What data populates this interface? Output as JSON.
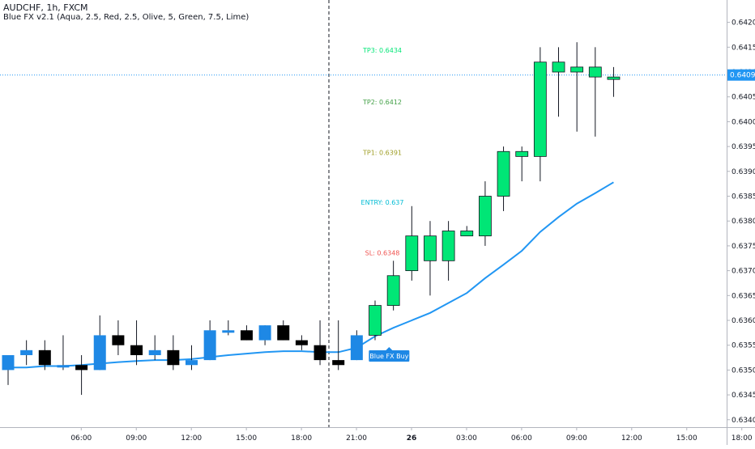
{
  "header": {
    "symbol_line": "AUDCHF, 1h, FXCM",
    "indicator_line": "Blue FX v2.1 (Aqua, 2.5, Red, 2.5, Olive, 5, Green, 7.5, Lime)"
  },
  "colors": {
    "bull_pre": "#1e88e5",
    "bear_pre": "#000000",
    "bull_post": "#00e676",
    "ma_line": "#2196f3",
    "price_line": "#2196f3",
    "tp3": "#00e676",
    "tp2": "#43a047",
    "tp1": "#9e9d24",
    "entry": "#00bcd4",
    "sl": "#ef5350",
    "grid_text": "#131722",
    "axis_line": "#b2b5be"
  },
  "chart_data": {
    "type": "candlestick",
    "y_axis": {
      "ticks": [
        "0.64200",
        "0.64150",
        "0.64100",
        "0.64050",
        "0.64000",
        "0.63950",
        "0.63900",
        "0.63850",
        "0.63800",
        "0.63750",
        "0.63700",
        "0.63650",
        "0.63600",
        "0.63550",
        "0.63500",
        "0.63450",
        "0.63400"
      ],
      "ylim": [
        0.63385,
        0.64245
      ],
      "side": "right"
    },
    "x_axis": {
      "ticks": [
        "06:00",
        "09:00",
        "12:00",
        "15:00",
        "18:00",
        "21:00",
        "26",
        "03:00",
        "06:00",
        "09:00",
        "12:00",
        "15:00",
        "18:00"
      ],
      "tick_index": [
        2,
        5,
        8,
        11,
        14,
        17,
        20,
        23,
        26,
        29,
        32,
        35,
        38
      ]
    },
    "session_break_index": 18.5,
    "candles": [
      {
        "o": 0.635,
        "h": 0.6353,
        "l": 0.6347,
        "c": 0.6353
      },
      {
        "o": 0.6353,
        "h": 0.6356,
        "l": 0.6351,
        "c": 0.6354
      },
      {
        "o": 0.6354,
        "h": 0.6356,
        "l": 0.635,
        "c": 0.6351
      },
      {
        "o": 0.6351,
        "h": 0.6357,
        "l": 0.635,
        "c": 0.6351
      },
      {
        "o": 0.6351,
        "h": 0.6353,
        "l": 0.6345,
        "c": 0.635
      },
      {
        "o": 0.635,
        "h": 0.6361,
        "l": 0.635,
        "c": 0.6357
      },
      {
        "o": 0.6357,
        "h": 0.636,
        "l": 0.6353,
        "c": 0.6355
      },
      {
        "o": 0.6355,
        "h": 0.636,
        "l": 0.6351,
        "c": 0.6353
      },
      {
        "o": 0.6353,
        "h": 0.6357,
        "l": 0.6352,
        "c": 0.6354
      },
      {
        "o": 0.6354,
        "h": 0.6357,
        "l": 0.635,
        "c": 0.6351
      },
      {
        "o": 0.6351,
        "h": 0.6355,
        "l": 0.635,
        "c": 0.6352
      },
      {
        "o": 0.6352,
        "h": 0.636,
        "l": 0.6352,
        "c": 0.6358
      },
      {
        "o": 0.6358,
        "h": 0.636,
        "l": 0.6357,
        "c": 0.6358
      },
      {
        "o": 0.6358,
        "h": 0.6359,
        "l": 0.6356,
        "c": 0.6356
      },
      {
        "o": 0.6356,
        "h": 0.6359,
        "l": 0.6355,
        "c": 0.6359
      },
      {
        "o": 0.6359,
        "h": 0.636,
        "l": 0.6356,
        "c": 0.6356
      },
      {
        "o": 0.6356,
        "h": 0.6357,
        "l": 0.6354,
        "c": 0.6355
      },
      {
        "o": 0.6355,
        "h": 0.636,
        "l": 0.6351,
        "c": 0.6352
      },
      {
        "o": 0.6352,
        "h": 0.636,
        "l": 0.635,
        "c": 0.6351
      },
      {
        "o": 0.6352,
        "h": 0.6358,
        "l": 0.6352,
        "c": 0.6357
      },
      {
        "o": 0.6357,
        "h": 0.6364,
        "l": 0.6356,
        "c": 0.6363
      },
      {
        "o": 0.6363,
        "h": 0.6372,
        "l": 0.6362,
        "c": 0.6369
      },
      {
        "o": 0.637,
        "h": 0.6383,
        "l": 0.6368,
        "c": 0.6377
      },
      {
        "o": 0.6377,
        "h": 0.638,
        "l": 0.6365,
        "c": 0.6372
      },
      {
        "o": 0.6372,
        "h": 0.638,
        "l": 0.6368,
        "c": 0.6378
      },
      {
        "o": 0.6378,
        "h": 0.6379,
        "l": 0.6377,
        "c": 0.6377
      },
      {
        "o": 0.6377,
        "h": 0.6388,
        "l": 0.6375,
        "c": 0.6385
      },
      {
        "o": 0.6385,
        "h": 0.6395,
        "l": 0.6382,
        "c": 0.6394
      },
      {
        "o": 0.6393,
        "h": 0.6395,
        "l": 0.6388,
        "c": 0.6394
      },
      {
        "o": 0.6393,
        "h": 0.6415,
        "l": 0.6388,
        "c": 0.6412
      },
      {
        "o": 0.6412,
        "h": 0.6415,
        "l": 0.6401,
        "c": 0.641
      },
      {
        "o": 0.6411,
        "h": 0.6416,
        "l": 0.6398,
        "c": 0.641
      },
      {
        "o": 0.6411,
        "h": 0.6415,
        "l": 0.6397,
        "c": 0.6409
      },
      {
        "o": 0.6409,
        "h": 0.6411,
        "l": 0.6405,
        "c": 0.6409
      }
    ],
    "ma_series": [
      0.63505,
      0.63505,
      0.63508,
      0.63508,
      0.6351,
      0.63513,
      0.63516,
      0.63518,
      0.6352,
      0.6352,
      0.63522,
      0.63526,
      0.6353,
      0.63533,
      0.63536,
      0.63538,
      0.63538,
      0.63536,
      0.63536,
      0.63545,
      0.63568,
      0.63585,
      0.636,
      0.63615,
      0.63635,
      0.63655,
      0.63685,
      0.63712,
      0.6374,
      0.63778,
      0.63808,
      0.63835,
      0.63856,
      0.63878
    ],
    "last_price_label": "0.64094",
    "last_price": 0.64094,
    "levels": [
      {
        "label": "TP3: 0.6434",
        "y": 0.64144,
        "color_key": "tp3"
      },
      {
        "label": "TP2: 0.6412",
        "y": 0.6404,
        "color_key": "tp2"
      },
      {
        "label": "TP1: 0.6391",
        "y": 0.63938,
        "color_key": "tp1"
      },
      {
        "label": "ENTRY: 0.637",
        "y": 0.63838,
        "color_key": "entry"
      },
      {
        "label": "SL: 0.6348",
        "y": 0.63736,
        "color_key": "sl"
      }
    ],
    "signal": {
      "label": "Blue FX Buy",
      "candle_index": 19
    }
  }
}
